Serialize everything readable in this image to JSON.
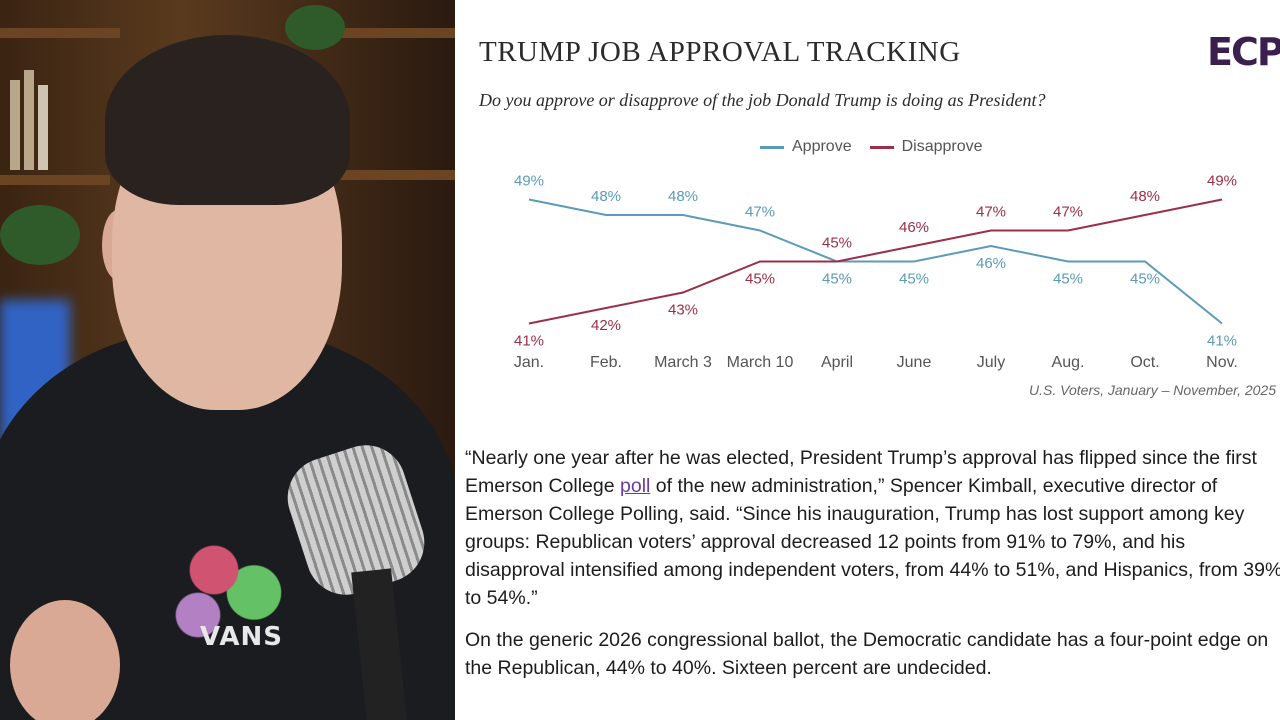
{
  "chart_data": {
    "type": "line",
    "title": "TRUMP JOB APPROVAL TRACKING",
    "subtitle": "Do you approve or disapprove of the job Donald Trump is doing as President?",
    "categories": [
      "Jan.",
      "Feb.",
      "March 3",
      "March 10",
      "April",
      "June",
      "July",
      "Aug.",
      "Oct.",
      "Nov."
    ],
    "series": [
      {
        "name": "Approve",
        "color": "#5b9bb8",
        "values": [
          49,
          48,
          48,
          47,
          45,
          45,
          46,
          45,
          45,
          41
        ]
      },
      {
        "name": "Disapprove",
        "color": "#9b2f48",
        "values": [
          41,
          42,
          43,
          45,
          45,
          46,
          47,
          47,
          48,
          49
        ]
      }
    ],
    "ylim": [
      40,
      50
    ],
    "value_suffix": "%",
    "grid": false,
    "legend_position": "top-center",
    "source": "U.S. Voters, January – November, 2025"
  },
  "logo_text": "ECP",
  "article": {
    "p1_part1": "“Nearly one year after he was elected, President Trump’s approval has flipped since the first Emerson College ",
    "p1_link": "poll",
    "p1_part2": " of the new administration,” Spencer Kimball, executive director of Emerson College Polling, said. “Since his inauguration, Trump has lost support among key groups: Republican voters’ approval decreased 12 points from 91% to 79%, and his disapproval intensified among independent voters, from 44% to 51%, and Hispanics, from 39% to 54%.”",
    "p2": "On the generic 2026 congressional ballot, the Democratic candidate has a four-point edge on the Republican, 44% to 40%. Sixteen percent are undecided."
  },
  "webcam": {
    "shirt_text": "VANS"
  }
}
